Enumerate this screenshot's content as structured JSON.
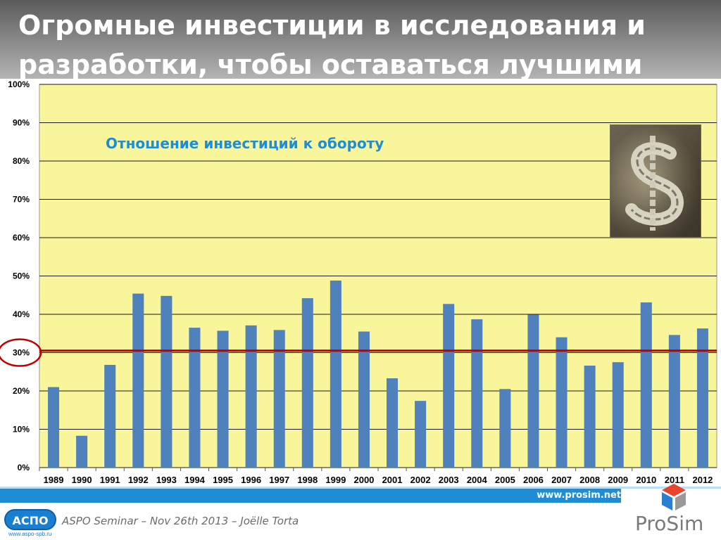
{
  "slide": {
    "title": "Огромные инвестиции в исследования и разработки, чтобы оставаться лучшими",
    "website": "www.prosim.net",
    "footer": "ASPO Seminar – Nov 26th 2013 – Joëlle Torta",
    "logo_left": "АСПО",
    "logo_left_url": "www.aspo-spb.ru",
    "logo_right": "ProSim",
    "photo_icon": "dollar-coins-photo"
  },
  "colors": {
    "plot_bg": "#f9f59a",
    "bar": "#4f81bd",
    "threshold": "#c00000",
    "subtitle": "#1f8dd6"
  },
  "chart_data": {
    "type": "bar",
    "title": "Отношение инвестиций к обороту",
    "categories": [
      "1989",
      "1990",
      "1991",
      "1992",
      "1993",
      "1994",
      "1995",
      "1996",
      "1997",
      "1998",
      "1999",
      "2000",
      "2001",
      "2002",
      "2003",
      "2004",
      "2005",
      "2006",
      "2007",
      "2008",
      "2009",
      "2010",
      "2011",
      "2012"
    ],
    "values": [
      21,
      8.3,
      26.8,
      45.4,
      44.8,
      36.5,
      35.7,
      37.1,
      35.9,
      44.2,
      48.8,
      35.5,
      23.3,
      17.4,
      42.7,
      38.7,
      20.5,
      39.9,
      34,
      26.6,
      27.5,
      43.1,
      34.6,
      36.3
    ],
    "yticks": [
      "0%",
      "10%",
      "20%",
      "30%",
      "40%",
      "50%",
      "60%",
      "70%",
      "80%",
      "90%",
      "100%"
    ],
    "ylim": [
      0,
      100
    ],
    "threshold": 30.5,
    "highlighted_tick": "30%",
    "grid": true
  }
}
